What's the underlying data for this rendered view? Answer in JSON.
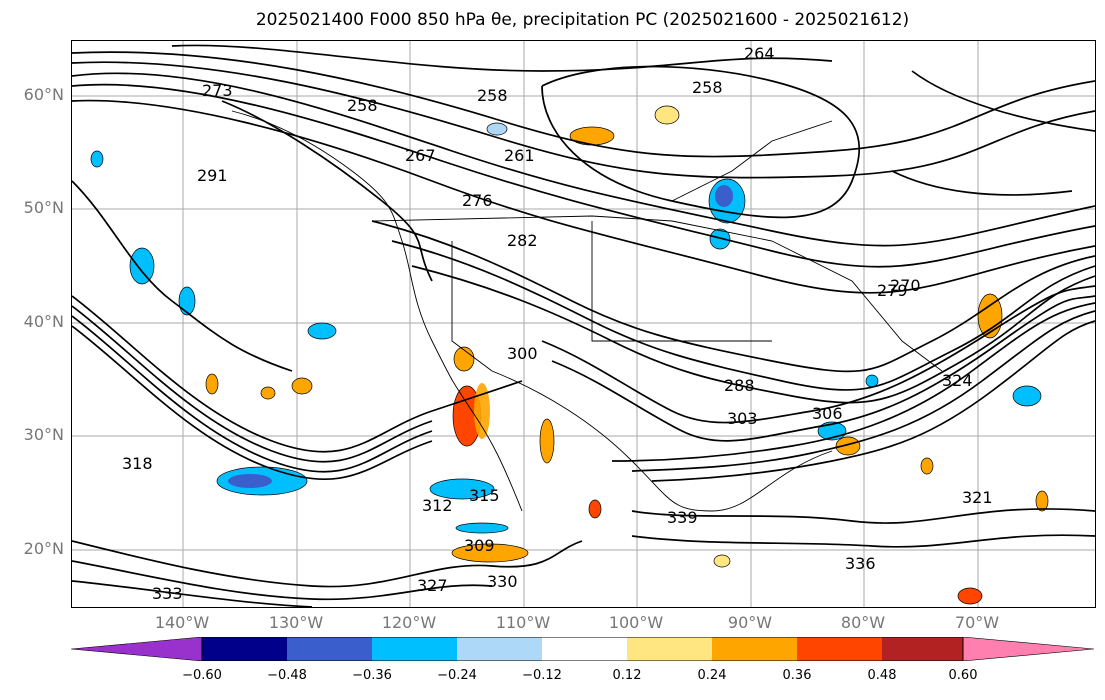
{
  "title": "2025021400 F000 850 hPa θe, precipitation PC (2025021600 - 2025021612)",
  "lat_labels": [
    "60°N",
    "50°N",
    "40°N",
    "30°N",
    "20°N"
  ],
  "lon_labels": [
    "140°W",
    "130°W",
    "120°W",
    "110°W",
    "100°W",
    "90°W",
    "80°W",
    "70°W"
  ],
  "contour_labels": [
    "258",
    "261",
    "264",
    "258",
    "258",
    "267",
    "273",
    "276",
    "279",
    "282",
    "291",
    "300",
    "303",
    "309",
    "312",
    "315",
    "318",
    "321",
    "324",
    "327",
    "330",
    "333",
    "336",
    "288",
    "270",
    "306",
    "339"
  ],
  "colorbar": {
    "ticks": [
      "−0.60",
      "−0.48",
      "−0.36",
      "−0.24",
      "−0.12",
      "0.12",
      "0.24",
      "0.36",
      "0.48",
      "0.60"
    ],
    "colors": [
      "#9932cc",
      "#00008b",
      "#3a5fcd",
      "#00bfff",
      "#add8f7",
      "#ffffff",
      "#ffe680",
      "#ffa500",
      "#ff4500",
      "#b22222",
      "#ff7fae"
    ]
  }
}
